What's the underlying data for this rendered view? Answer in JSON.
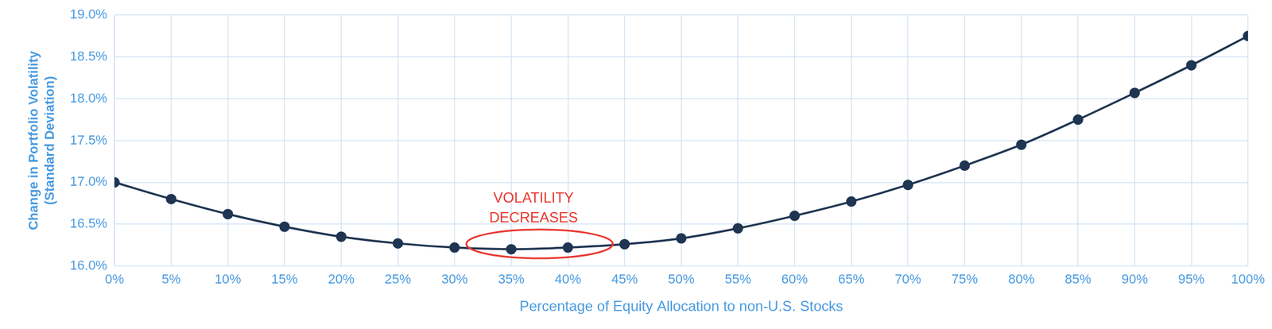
{
  "chart_data": {
    "type": "line",
    "categories": [
      "0%",
      "5%",
      "10%",
      "15%",
      "20%",
      "25%",
      "30%",
      "35%",
      "40%",
      "45%",
      "50%",
      "55%",
      "60%",
      "65%",
      "70%",
      "75%",
      "80%",
      "85%",
      "90%",
      "95%",
      "100%"
    ],
    "values": [
      17.0,
      16.8,
      16.62,
      16.47,
      16.35,
      16.27,
      16.22,
      16.2,
      16.22,
      16.26,
      16.33,
      16.45,
      16.6,
      16.77,
      16.97,
      17.2,
      17.45,
      17.75,
      18.07,
      18.4,
      18.75
    ],
    "color": "#1f3552",
    "marker": "circle",
    "ylim": [
      16.0,
      19.0
    ],
    "yticks": [
      {
        "value": 16.0,
        "label": "16.0%"
      },
      {
        "value": 16.5,
        "label": "16.5%"
      },
      {
        "value": 17.0,
        "label": "17.0%"
      },
      {
        "value": 17.5,
        "label": "17.5%"
      },
      {
        "value": 18.0,
        "label": "18.0%"
      },
      {
        "value": 18.5,
        "label": "18.5%"
      },
      {
        "value": 19.0,
        "label": "19.0%"
      }
    ],
    "x_label": "Percentage of Equity Allocation to non-U.S. Stocks",
    "y_label": [
      "Change in Portfolio Volatility",
      "(Standard Deviation)"
    ],
    "grid": true,
    "annotation": {
      "text": [
        "VOLATILITY",
        "DECREASES"
      ],
      "categories": [
        "35%",
        "40%"
      ]
    }
  }
}
